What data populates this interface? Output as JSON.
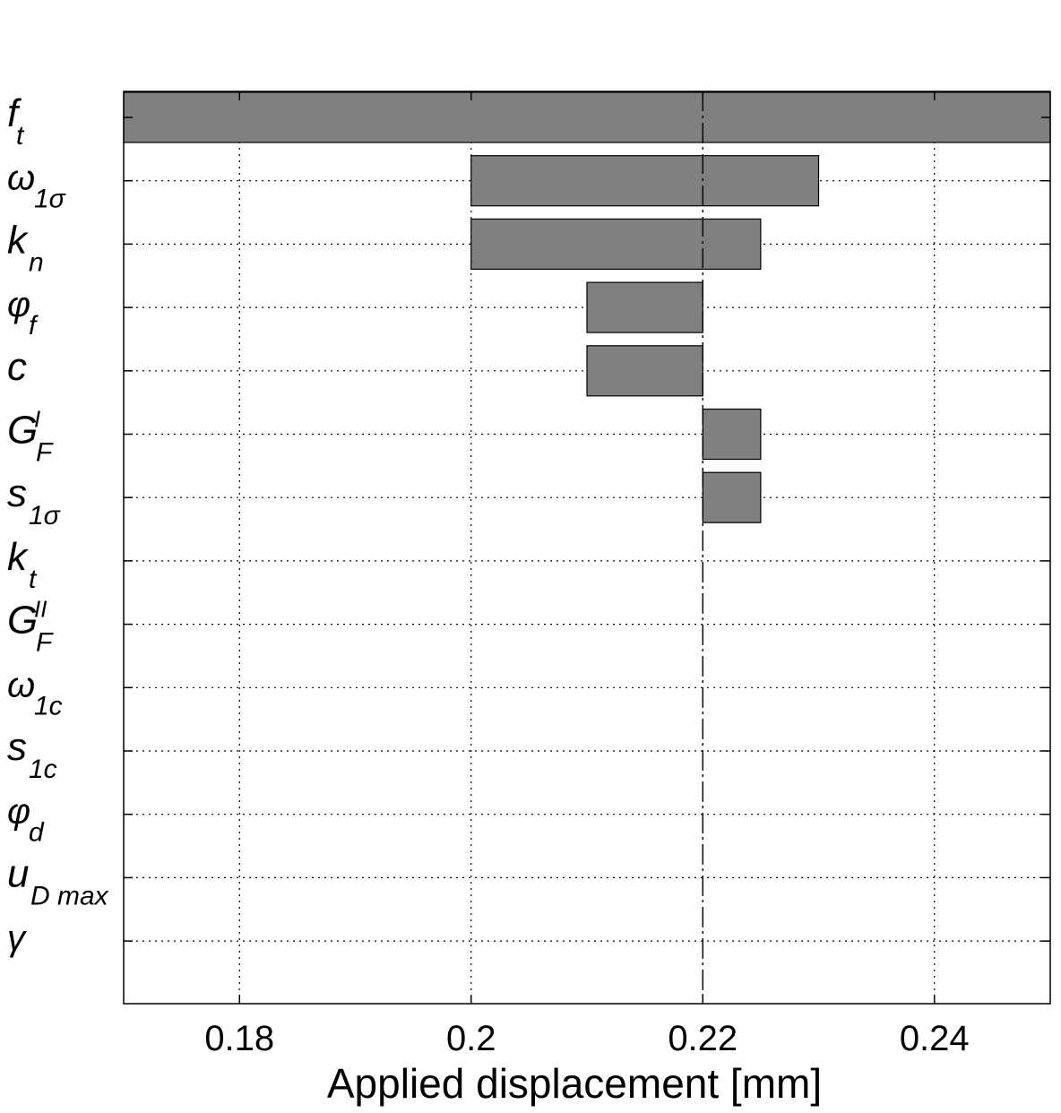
{
  "chart_data": {
    "type": "bar",
    "orientation": "horizontal",
    "chart_style": "tornado",
    "xlabel": "Applied displacement [mm]",
    "xlim": [
      0.17,
      0.25
    ],
    "xticks": [
      0.18,
      0.2,
      0.22,
      0.24
    ],
    "xtick_labels": [
      "0.18",
      "0.2",
      "0.22",
      "0.24"
    ],
    "baseline": 0.22,
    "grid": true,
    "bar_color": "#808080",
    "parameters": [
      {
        "label": {
          "base": "f",
          "sub": "t"
        },
        "low": 0.17,
        "high": 0.25
      },
      {
        "label": {
          "base": "ω",
          "sub": "1σ"
        },
        "low": 0.2,
        "high": 0.23
      },
      {
        "label": {
          "base": "k",
          "sub": "n"
        },
        "low": 0.2,
        "high": 0.225
      },
      {
        "label": {
          "base": "φ",
          "sub": "f"
        },
        "low": 0.21,
        "high": 0.22
      },
      {
        "label": {
          "base": "c"
        },
        "low": 0.21,
        "high": 0.22
      },
      {
        "label": {
          "base": "G",
          "sup": "I",
          "sub": "F"
        },
        "low": 0.22,
        "high": 0.225
      },
      {
        "label": {
          "base": "s",
          "sub": "1σ"
        },
        "low": 0.22,
        "high": 0.225
      },
      {
        "label": {
          "base": "k",
          "sub": "t"
        },
        "low": 0.22,
        "high": 0.22
      },
      {
        "label": {
          "base": "G",
          "sup": "II",
          "sub": "F"
        },
        "low": 0.22,
        "high": 0.22
      },
      {
        "label": {
          "base": "ω",
          "sub": "1c"
        },
        "low": 0.22,
        "high": 0.22
      },
      {
        "label": {
          "base": "s",
          "sub": "1c"
        },
        "low": 0.22,
        "high": 0.22
      },
      {
        "label": {
          "base": "φ",
          "sub": "d"
        },
        "low": 0.22,
        "high": 0.22
      },
      {
        "label": {
          "base": "u",
          "sub": "D max"
        },
        "low": 0.22,
        "high": 0.22
      },
      {
        "label": {
          "base": "γ"
        },
        "low": 0.22,
        "high": 0.22
      }
    ]
  }
}
